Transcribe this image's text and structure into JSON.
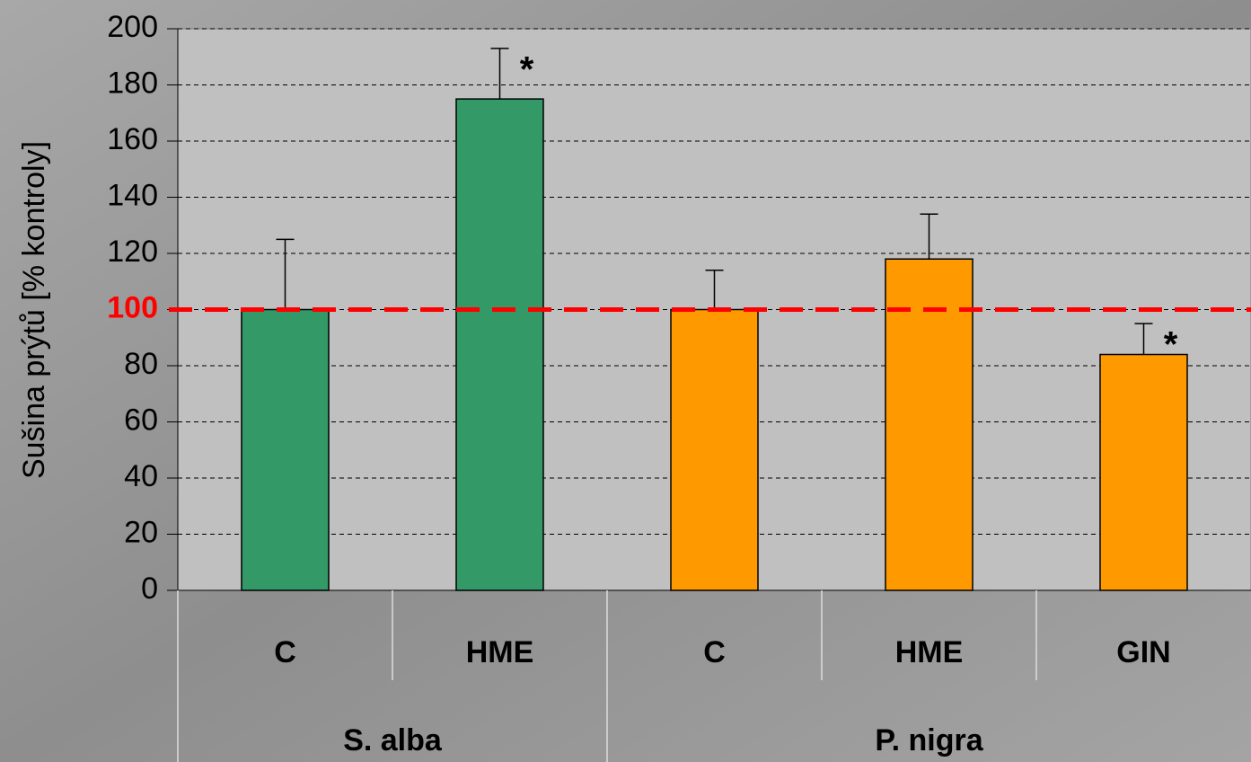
{
  "chart_data": {
    "type": "bar",
    "y_label": "Sušina prýtů [% kontroly]",
    "ylim": [
      0,
      200
    ],
    "yticks": [
      0,
      20,
      40,
      60,
      80,
      100,
      120,
      140,
      160,
      180,
      200
    ],
    "grid": true,
    "reference_line": {
      "value": 100,
      "color": "#ff0000"
    },
    "groups": [
      {
        "name": "S. alba",
        "color": "#339966",
        "categories": [
          "C",
          "HME"
        ],
        "values": [
          100,
          175
        ],
        "errors": [
          25,
          18
        ],
        "significance": [
          null,
          "*"
        ]
      },
      {
        "name": "P. nigra",
        "color": "#ff9900",
        "categories": [
          "C",
          "HME",
          "GIN"
        ],
        "values": [
          100,
          118,
          84
        ],
        "errors": [
          14,
          16,
          11
        ],
        "significance": [
          null,
          null,
          "*"
        ]
      }
    ]
  }
}
